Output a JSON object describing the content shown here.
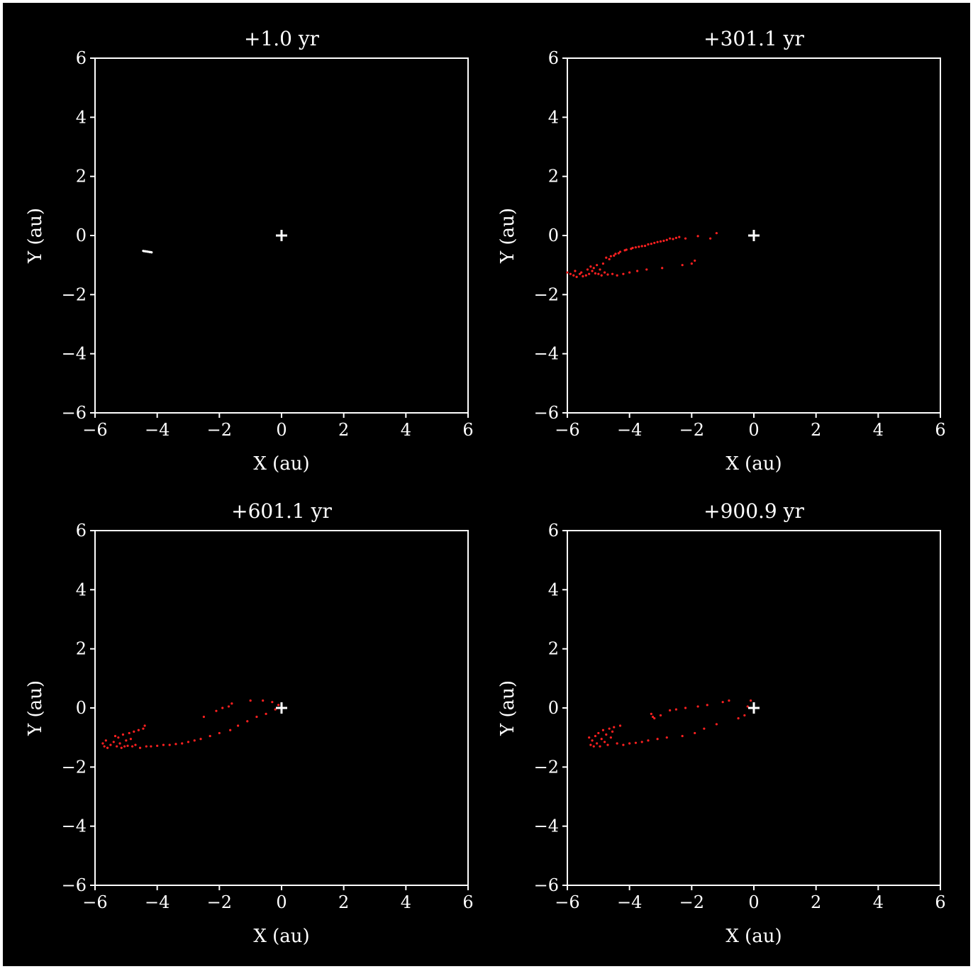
{
  "chart_data": [
    {
      "type": "scatter",
      "title": "+1.0 yr",
      "xlabel": "X (au)",
      "ylabel": "Y (au)",
      "xlim": [
        -6,
        6
      ],
      "ylim": [
        -6,
        6
      ],
      "xticks": [
        "−6",
        "−4",
        "−2",
        "0",
        "2",
        "4",
        "6"
      ],
      "yticks": [
        "−6",
        "−4",
        "−2",
        "0",
        "2",
        "4",
        "6"
      ],
      "grid": false,
      "marker": {
        "x": 0,
        "y": 0,
        "symbol": "+",
        "color": "#ffffff"
      },
      "series": [
        {
          "color": "#ffffff",
          "points": [
            [
              -4.45,
              -0.52
            ],
            [
              -4.42,
              -0.53
            ],
            [
              -4.39,
              -0.53
            ],
            [
              -4.36,
              -0.54
            ],
            [
              -4.33,
              -0.54
            ],
            [
              -4.3,
              -0.55
            ],
            [
              -4.27,
              -0.55
            ],
            [
              -4.24,
              -0.56
            ],
            [
              -4.21,
              -0.56
            ],
            [
              -4.18,
              -0.57
            ]
          ]
        }
      ]
    },
    {
      "type": "scatter",
      "title": "+301.1 yr",
      "xlabel": "X (au)",
      "ylabel": "Y (au)",
      "xlim": [
        -6,
        6
      ],
      "ylim": [
        -6,
        6
      ],
      "xticks": [
        "−6",
        "−4",
        "−2",
        "0",
        "2",
        "4",
        "6"
      ],
      "yticks": [
        "−6",
        "−4",
        "−2",
        "0",
        "2",
        "4",
        "6"
      ],
      "grid": false,
      "marker": {
        "x": 0,
        "y": 0,
        "symbol": "+",
        "color": "#ffffff"
      },
      "series": [
        {
          "color": "#ff2020",
          "points": [
            [
              -6.0,
              -1.25
            ],
            [
              -5.9,
              -1.3
            ],
            [
              -5.8,
              -1.35
            ],
            [
              -5.75,
              -1.2
            ],
            [
              -5.7,
              -1.4
            ],
            [
              -5.6,
              -1.3
            ],
            [
              -5.55,
              -1.25
            ],
            [
              -5.5,
              -1.38
            ],
            [
              -5.4,
              -1.35
            ],
            [
              -5.35,
              -1.15
            ],
            [
              -5.3,
              -1.3
            ],
            [
              -5.25,
              -1.05
            ],
            [
              -5.2,
              -1.2
            ],
            [
              -5.15,
              -1.1
            ],
            [
              -5.1,
              -1.28
            ],
            [
              -5.05,
              -1.0
            ],
            [
              -5.0,
              -1.3
            ],
            [
              -4.95,
              -1.15
            ],
            [
              -4.9,
              -1.35
            ],
            [
              -4.85,
              -0.95
            ],
            [
              -4.8,
              -1.25
            ],
            [
              -4.75,
              -0.75
            ],
            [
              -4.7,
              -1.32
            ],
            [
              -4.65,
              -0.8
            ],
            [
              -4.6,
              -0.7
            ],
            [
              -4.55,
              -1.3
            ],
            [
              -4.5,
              -0.68
            ],
            [
              -4.45,
              -0.62
            ],
            [
              -4.4,
              -1.35
            ],
            [
              -4.35,
              -0.6
            ],
            [
              -4.3,
              -0.55
            ],
            [
              -4.2,
              -1.3
            ],
            [
              -4.15,
              -0.5
            ],
            [
              -4.1,
              -0.48
            ],
            [
              -4.0,
              -1.25
            ],
            [
              -3.95,
              -0.45
            ],
            [
              -3.9,
              -0.42
            ],
            [
              -3.8,
              -0.4
            ],
            [
              -3.75,
              -1.2
            ],
            [
              -3.7,
              -0.38
            ],
            [
              -3.6,
              -0.36
            ],
            [
              -3.5,
              -0.35
            ],
            [
              -3.45,
              -1.15
            ],
            [
              -3.4,
              -0.3
            ],
            [
              -3.3,
              -0.28
            ],
            [
              -3.2,
              -0.25
            ],
            [
              -3.1,
              -0.22
            ],
            [
              -3.0,
              -0.2
            ],
            [
              -2.95,
              -1.1
            ],
            [
              -2.9,
              -0.18
            ],
            [
              -2.8,
              -0.15
            ],
            [
              -2.7,
              -0.1
            ],
            [
              -2.6,
              -0.12
            ],
            [
              -2.5,
              -0.08
            ],
            [
              -2.4,
              -0.05
            ],
            [
              -2.3,
              -1.0
            ],
            [
              -2.2,
              -0.1
            ],
            [
              -2.0,
              -0.95
            ],
            [
              -1.9,
              -0.85
            ],
            [
              -1.8,
              -0.02
            ],
            [
              -1.4,
              -0.1
            ],
            [
              -1.2,
              0.08
            ]
          ]
        }
      ]
    },
    {
      "type": "scatter",
      "title": "+601.1 yr",
      "xlabel": "X (au)",
      "ylabel": "Y (au)",
      "xlim": [
        -6,
        6
      ],
      "ylim": [
        -6,
        6
      ],
      "xticks": [
        "−6",
        "−4",
        "−2",
        "0",
        "2",
        "4",
        "6"
      ],
      "yticks": [
        "−6",
        "−4",
        "−2",
        "0",
        "2",
        "4",
        "6"
      ],
      "grid": false,
      "marker": {
        "x": 0,
        "y": 0,
        "symbol": "+",
        "color": "#ffffff"
      },
      "series": [
        {
          "color": "#ff2020",
          "points": [
            [
              -5.75,
              -1.2
            ],
            [
              -5.7,
              -1.3
            ],
            [
              -5.65,
              -1.1
            ],
            [
              -5.6,
              -1.35
            ],
            [
              -5.5,
              -1.25
            ],
            [
              -5.4,
              -1.15
            ],
            [
              -5.35,
              -0.95
            ],
            [
              -5.3,
              -1.3
            ],
            [
              -5.25,
              -1.0
            ],
            [
              -5.2,
              -1.2
            ],
            [
              -5.15,
              -1.35
            ],
            [
              -5.1,
              -0.9
            ],
            [
              -5.05,
              -1.3
            ],
            [
              -5.0,
              -1.1
            ],
            [
              -4.95,
              -1.28
            ],
            [
              -4.9,
              -0.85
            ],
            [
              -4.85,
              -1.05
            ],
            [
              -4.8,
              -1.3
            ],
            [
              -4.75,
              -0.8
            ],
            [
              -4.7,
              -1.25
            ],
            [
              -4.6,
              -0.75
            ],
            [
              -4.55,
              -1.35
            ],
            [
              -4.45,
              -0.7
            ],
            [
              -4.4,
              -0.6
            ],
            [
              -4.35,
              -1.3
            ],
            [
              -4.2,
              -1.3
            ],
            [
              -4.0,
              -1.28
            ],
            [
              -3.8,
              -1.25
            ],
            [
              -3.6,
              -1.25
            ],
            [
              -3.4,
              -1.22
            ],
            [
              -3.2,
              -1.2
            ],
            [
              -3.0,
              -1.15
            ],
            [
              -2.8,
              -1.1
            ],
            [
              -2.6,
              -1.05
            ],
            [
              -2.5,
              -0.3
            ],
            [
              -2.3,
              -0.95
            ],
            [
              -2.1,
              -0.1
            ],
            [
              -2.0,
              -0.85
            ],
            [
              -1.9,
              0.0
            ],
            [
              -1.7,
              0.05
            ],
            [
              -1.65,
              -0.75
            ],
            [
              -1.6,
              0.15
            ],
            [
              -1.4,
              -0.6
            ],
            [
              -1.1,
              -0.45
            ],
            [
              -1.0,
              0.25
            ],
            [
              -0.8,
              -0.3
            ],
            [
              -0.6,
              0.25
            ],
            [
              -0.5,
              -0.2
            ],
            [
              -0.3,
              0.2
            ],
            [
              -0.2,
              -0.05
            ],
            [
              -0.1,
              0.1
            ]
          ]
        }
      ]
    },
    {
      "type": "scatter",
      "title": "+900.9 yr",
      "xlabel": "X (au)",
      "ylabel": "Y (au)",
      "xlim": [
        -6,
        6
      ],
      "ylim": [
        -6,
        6
      ],
      "xticks": [
        "−6",
        "−4",
        "−2",
        "0",
        "2",
        "4",
        "6"
      ],
      "yticks": [
        "−6",
        "−4",
        "−2",
        "0",
        "2",
        "4",
        "6"
      ],
      "grid": false,
      "marker": {
        "x": 0,
        "y": 0,
        "symbol": "+",
        "color": "#ffffff"
      },
      "series": [
        {
          "color": "#ff2020",
          "points": [
            [
              -5.3,
              -1.0
            ],
            [
              -5.25,
              -1.25
            ],
            [
              -5.2,
              -1.1
            ],
            [
              -5.15,
              -1.3
            ],
            [
              -5.1,
              -0.95
            ],
            [
              -5.05,
              -1.2
            ],
            [
              -5.0,
              -0.85
            ],
            [
              -4.95,
              -1.3
            ],
            [
              -4.9,
              -1.05
            ],
            [
              -4.85,
              -0.75
            ],
            [
              -4.8,
              -1.15
            ],
            [
              -4.75,
              -0.9
            ],
            [
              -4.7,
              -1.25
            ],
            [
              -4.65,
              -0.7
            ],
            [
              -4.6,
              -1.0
            ],
            [
              -4.55,
              -0.8
            ],
            [
              -4.5,
              -0.65
            ],
            [
              -4.4,
              -1.2
            ],
            [
              -4.3,
              -0.6
            ],
            [
              -4.2,
              -1.25
            ],
            [
              -4.0,
              -1.2
            ],
            [
              -3.8,
              -1.18
            ],
            [
              -3.6,
              -1.15
            ],
            [
              -3.4,
              -1.1
            ],
            [
              -3.3,
              -0.2
            ],
            [
              -3.25,
              -0.3
            ],
            [
              -3.2,
              -0.35
            ],
            [
              -3.1,
              -1.05
            ],
            [
              -3.0,
              -0.25
            ],
            [
              -2.8,
              -1.0
            ],
            [
              -2.7,
              -0.08
            ],
            [
              -2.5,
              -0.05
            ],
            [
              -2.3,
              -0.95
            ],
            [
              -2.2,
              0.0
            ],
            [
              -1.9,
              -0.85
            ],
            [
              -1.8,
              0.05
            ],
            [
              -1.6,
              -0.7
            ],
            [
              -1.5,
              0.1
            ],
            [
              -1.2,
              -0.55
            ],
            [
              -1.0,
              0.2
            ],
            [
              -0.8,
              0.25
            ],
            [
              -0.5,
              -0.35
            ],
            [
              -0.3,
              -0.25
            ],
            [
              -0.2,
              0.05
            ],
            [
              -0.1,
              0.25
            ]
          ]
        }
      ]
    }
  ]
}
